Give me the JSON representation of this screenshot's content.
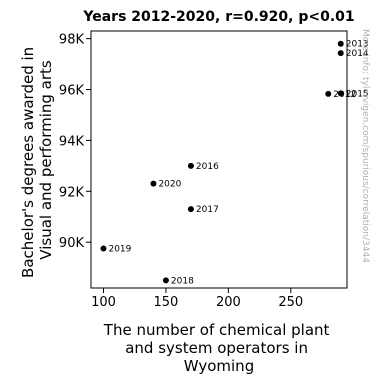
{
  "chart_data": {
    "type": "scatter",
    "title": "Years 2012-2020, r=0.920, p<0.01",
    "xlabel": [
      "The number of chemical plant",
      "and system operators in",
      "Wyoming"
    ],
    "ylabel": [
      "Bachelor's degrees awarded in",
      "Visual and performing arts"
    ],
    "xlim": [
      90,
      295
    ],
    "ylim": [
      88200,
      98300
    ],
    "xticks": [
      100,
      150,
      200,
      250
    ],
    "xtick_labels": [
      "100",
      "150",
      "200",
      "250"
    ],
    "yticks": [
      90000,
      92000,
      94000,
      96000,
      98000
    ],
    "ytick_labels": [
      "90K",
      "92K",
      "94K",
      "96K",
      "98K"
    ],
    "points": [
      {
        "label": "2012",
        "x": 280,
        "y": 95830
      },
      {
        "label": "2013",
        "x": 290,
        "y": 97800
      },
      {
        "label": "2014",
        "x": 290,
        "y": 97430
      },
      {
        "label": "2015",
        "x": 290,
        "y": 95850
      },
      {
        "label": "2016",
        "x": 170,
        "y": 93000
      },
      {
        "label": "2017",
        "x": 170,
        "y": 91300
      },
      {
        "label": "2018",
        "x": 150,
        "y": 88500
      },
      {
        "label": "2019",
        "x": 100,
        "y": 89750
      },
      {
        "label": "2020",
        "x": 140,
        "y": 92300
      }
    ],
    "grid": false,
    "marker_color": "#000000"
  },
  "watermark": "More info: tylervigen.com/spurious/correlation/3444"
}
